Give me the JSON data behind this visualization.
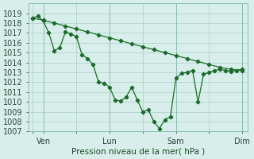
{
  "title": "",
  "xlabel": "Pression niveau de la mer( hPa )",
  "ylabel": "",
  "background_color": "#d8eeea",
  "grid_color": "#b0d4cc",
  "line_color": "#1a6b2a",
  "ylim": [
    1007,
    1020
  ],
  "yticks": [
    1007,
    1008,
    1009,
    1010,
    1011,
    1012,
    1013,
    1014,
    1015,
    1016,
    1017,
    1018,
    1019
  ],
  "xtick_labels": [
    "",
    "Ven",
    "",
    "Lun",
    "",
    "Sam",
    "",
    "Dim"
  ],
  "xtick_positions": [
    0,
    1,
    4,
    7,
    10,
    13,
    16,
    19
  ],
  "line1_x": [
    0,
    0.5,
    1,
    1.5,
    2,
    2.5,
    3,
    3.5,
    4,
    4.5,
    5,
    5.5,
    6,
    6.5,
    7,
    7.5,
    8,
    8.5,
    9,
    9.5,
    10,
    10.5,
    11,
    11.5,
    12,
    12.5,
    13,
    13.5,
    14,
    14.5,
    15,
    15.5,
    16,
    16.5,
    17,
    17.5,
    18,
    18.5,
    19
  ],
  "line1_y": [
    1018.5,
    1018.7,
    1018.2,
    1017.0,
    1015.2,
    1015.5,
    1017.1,
    1016.9,
    1016.6,
    1014.8,
    1014.4,
    1013.8,
    1012.0,
    1011.9,
    1011.5,
    1010.2,
    1010.1,
    1010.5,
    1011.5,
    1010.2,
    1009.0,
    1009.2,
    1008.0,
    1007.3,
    1008.2,
    1008.5,
    1012.4,
    1012.9,
    1013.0,
    1013.2,
    1010.0,
    1012.8,
    1013.0,
    1013.2,
    1013.3,
    1013.2,
    1013.1,
    1013.2,
    1013.3
  ],
  "line2_x": [
    0,
    1,
    2,
    3,
    4,
    5,
    6,
    7,
    8,
    9,
    10,
    11,
    12,
    13,
    14,
    15,
    16,
    17,
    18,
    19
  ],
  "line2_y": [
    1018.5,
    1018.3,
    1018.0,
    1017.7,
    1017.4,
    1017.1,
    1016.8,
    1016.5,
    1016.2,
    1015.9,
    1015.6,
    1015.3,
    1015.0,
    1014.7,
    1014.4,
    1014.1,
    1013.8,
    1013.5,
    1013.3,
    1013.2
  ]
}
